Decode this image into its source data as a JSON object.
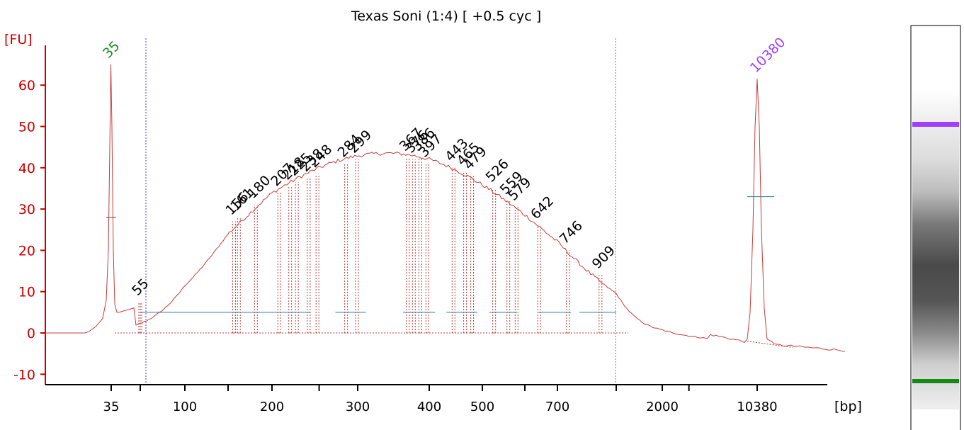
{
  "chart_data": {
    "type": "line",
    "title": "Texas Soni (1:4)  [ +0.5 cyc ]",
    "ylabel": "[FU]",
    "xlabel": "[bp]",
    "ylim": [
      -12,
      70
    ],
    "y_ticks": [
      -10,
      0,
      10,
      20,
      30,
      40,
      50,
      60
    ],
    "x_tick_labels": [
      "35",
      "100",
      "200",
      "300",
      "400",
      "500",
      "700",
      "2000",
      "10380"
    ],
    "lower_marker": {
      "label": "35",
      "size_bp": 35,
      "height_fu": 65,
      "color": "#1f8a1f"
    },
    "upper_marker": {
      "label": "10380",
      "size_bp": 10380,
      "height_fu": 61.5,
      "color": "#a040ff"
    },
    "peaks": [
      {
        "label": "55",
        "size_bp": 55,
        "fu": 7.5
      },
      {
        "label": "156",
        "size_bp": 156,
        "fu": 27
      },
      {
        "label": "161",
        "size_bp": 161,
        "fu": 28
      },
      {
        "label": "180",
        "size_bp": 180,
        "fu": 31
      },
      {
        "label": "207",
        "size_bp": 207,
        "fu": 34
      },
      {
        "label": "218",
        "size_bp": 218,
        "fu": 35.5
      },
      {
        "label": "225",
        "size_bp": 225,
        "fu": 36.5
      },
      {
        "label": "238",
        "size_bp": 238,
        "fu": 37.5
      },
      {
        "label": "248",
        "size_bp": 248,
        "fu": 38.5
      },
      {
        "label": "284",
        "size_bp": 284,
        "fu": 41
      },
      {
        "label": "299",
        "size_bp": 299,
        "fu": 42
      },
      {
        "label": "367",
        "size_bp": 367,
        "fu": 42.5
      },
      {
        "label": "376",
        "size_bp": 376,
        "fu": 42
      },
      {
        "label": "386",
        "size_bp": 386,
        "fu": 42.5
      },
      {
        "label": "397",
        "size_bp": 397,
        "fu": 41
      },
      {
        "label": "443",
        "size_bp": 443,
        "fu": 40
      },
      {
        "label": "465",
        "size_bp": 465,
        "fu": 39
      },
      {
        "label": "479",
        "size_bp": 479,
        "fu": 38
      },
      {
        "label": "526",
        "size_bp": 526,
        "fu": 35
      },
      {
        "label": "559",
        "size_bp": 559,
        "fu": 32
      },
      {
        "label": "579",
        "size_bp": 579,
        "fu": 30.5
      },
      {
        "label": "642",
        "size_bp": 642,
        "fu": 26
      },
      {
        "label": "746",
        "size_bp": 746,
        "fu": 20
      },
      {
        "label": "909",
        "size_bp": 909,
        "fu": 14
      }
    ],
    "smear_range_bp": [
      55,
      2000
    ],
    "grid": false,
    "trace_color": "#c43c3c",
    "baseline_color": "#2f7f7f",
    "gel_lane": {
      "upper_band_color": "#a040ff",
      "lower_band_color": "#138a13",
      "smear_color": "#3a3a3a"
    }
  }
}
